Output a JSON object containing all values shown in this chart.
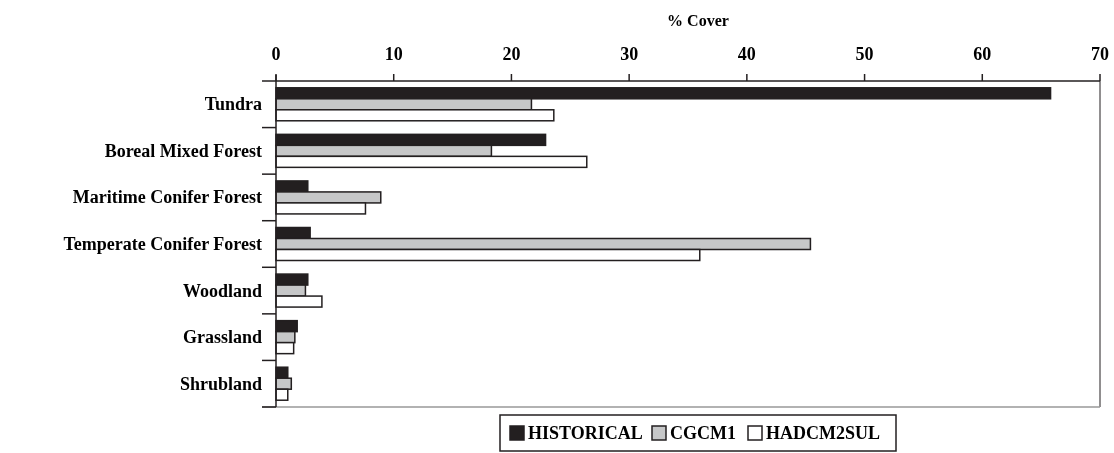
{
  "chart_data": {
    "type": "bar",
    "orientation": "horizontal",
    "xlabel": "% Cover",
    "categories": [
      "Tundra",
      "Boreal Mixed Forest",
      "Maritime Conifer Forest",
      "Temperate Conifer Forest",
      "Woodland",
      "Grassland",
      "Shrubland"
    ],
    "series": [
      {
        "name": "HISTORICAL",
        "color": "#231f20",
        "values": [
          65.8,
          22.9,
          2.7,
          2.9,
          2.7,
          1.8,
          1.0
        ]
      },
      {
        "name": "CGCM1",
        "color": "#c6c7c8",
        "values": [
          21.7,
          18.3,
          8.9,
          45.4,
          2.5,
          1.6,
          1.3
        ]
      },
      {
        "name": "HADCM2SUL",
        "color": "#ffffff",
        "values": [
          23.6,
          26.4,
          7.6,
          36.0,
          3.9,
          1.5,
          1.0
        ]
      }
    ],
    "xlim": [
      0,
      70
    ],
    "xticks": [
      0,
      10,
      20,
      30,
      40,
      50,
      60,
      70
    ],
    "legend": "bottom",
    "grid": false
  }
}
